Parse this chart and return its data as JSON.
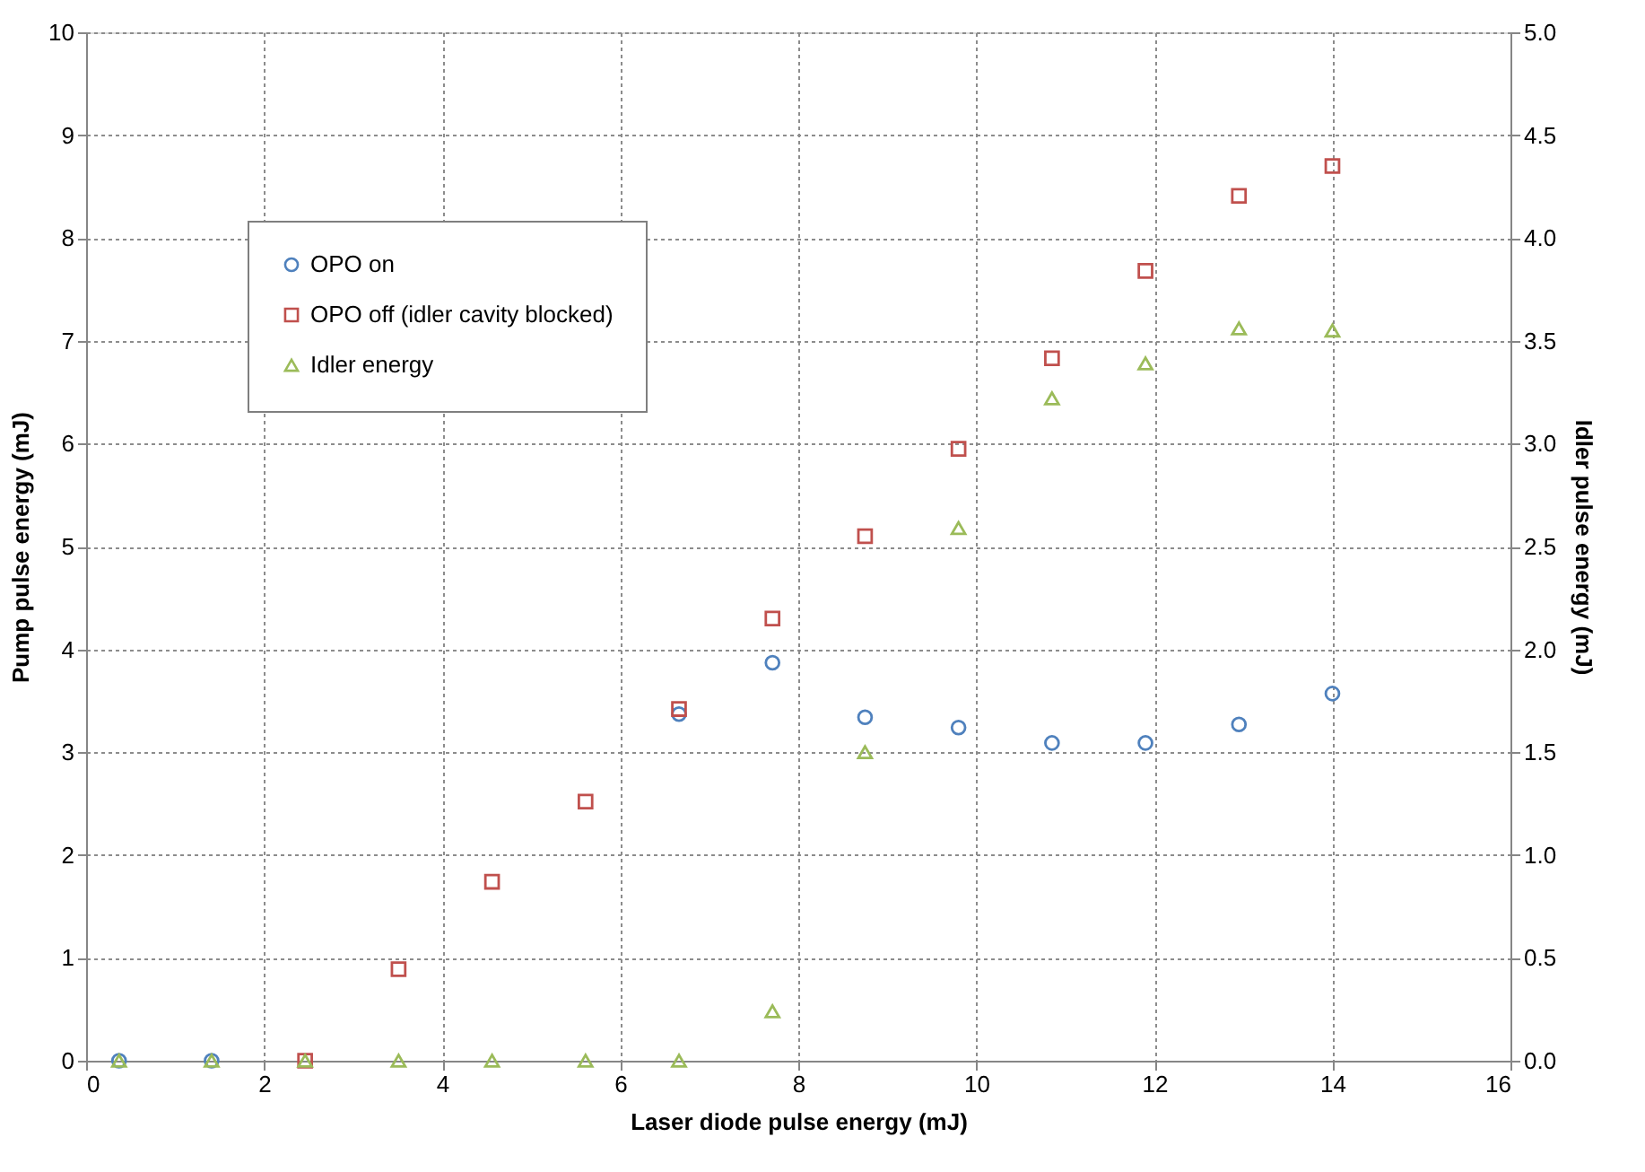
{
  "chart_data": {
    "type": "scatter",
    "xlabel": "Laser diode pulse energy (mJ)",
    "ylabel": "Pump pulse energy (mJ)",
    "y2label": "Idler pulse energy (mJ)",
    "x": [
      0.37,
      1.41,
      2.46,
      3.51,
      4.56,
      5.61,
      6.66,
      7.71,
      8.75,
      9.8,
      10.85,
      11.9,
      12.95,
      14.0
    ],
    "series": [
      {
        "name": "OPO on",
        "color": "#4f81bd",
        "marker": "circle",
        "values": [
          0,
          0,
          null,
          null,
          null,
          null,
          3.37,
          3.87,
          3.34,
          3.24,
          3.09,
          3.09,
          3.27,
          3.57
        ]
      },
      {
        "name": "OPO off (idler cavity blocked)",
        "color": "#c0504d",
        "marker": "square",
        "values": [
          null,
          null,
          0,
          0.89,
          1.74,
          2.52,
          3.42,
          4.3,
          5.1,
          5.95,
          6.83,
          7.68,
          8.41,
          8.7
        ]
      },
      {
        "name": "Idler energy",
        "color": "#9bbb59",
        "marker": "triangle",
        "axis": "y2",
        "values": [
          0,
          0,
          0,
          0,
          0,
          0,
          0,
          0.24,
          1.5,
          2.59,
          3.22,
          3.39,
          3.56,
          3.55
        ]
      }
    ],
    "xlim": [
      0,
      16
    ],
    "xticks": [
      0,
      2,
      4,
      6,
      8,
      10,
      12,
      14,
      16
    ],
    "ylim": [
      0,
      10
    ],
    "yticks": [
      0,
      1,
      2,
      3,
      4,
      5,
      6,
      7,
      8,
      9,
      10
    ],
    "y2lim": [
      0,
      5
    ],
    "y2ticks": [
      {
        "value": 0,
        "label": "0.0"
      },
      {
        "value": 0.5,
        "label": "0.5"
      },
      {
        "value": 1,
        "label": "1.0"
      },
      {
        "value": 1.5,
        "label": "1.5"
      },
      {
        "value": 2,
        "label": "2.0"
      },
      {
        "value": 2.5,
        "label": "2.5"
      },
      {
        "value": 3,
        "label": "3.0"
      },
      {
        "value": 3.5,
        "label": "3.5"
      },
      {
        "value": 4,
        "label": "4.0"
      },
      {
        "value": 4.5,
        "label": "4.5"
      },
      {
        "value": 5,
        "label": "5.0"
      }
    ],
    "grid": true,
    "legend": "top left"
  }
}
